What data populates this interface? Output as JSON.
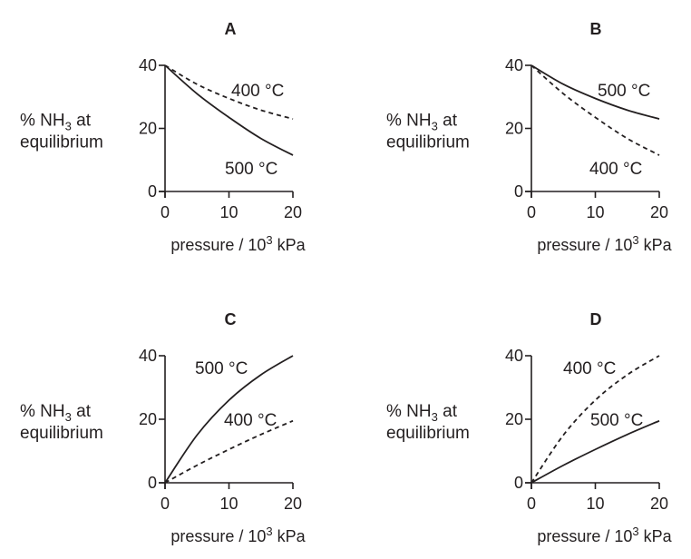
{
  "chart_data": [
    {
      "type": "line",
      "title": "A",
      "xlabel": "pressure / 10³ kPa",
      "ylabel": [
        "% NH₃ at",
        "equilibrium"
      ],
      "xlim": [
        0,
        20
      ],
      "ylim": [
        0,
        40
      ],
      "xticks": [
        "0",
        "10",
        "20"
      ],
      "yticks": [
        "0",
        "20",
        "40"
      ],
      "series": [
        {
          "name": "400 °C",
          "style": "dashed",
          "x": [
            0,
            5,
            10,
            15,
            20
          ],
          "y": [
            40,
            34,
            29.5,
            25.8,
            23
          ]
        },
        {
          "name": "500 °C",
          "style": "solid",
          "x": [
            0,
            5,
            10,
            15,
            20
          ],
          "y": [
            40,
            31,
            23.5,
            16.8,
            11.5
          ]
        }
      ]
    },
    {
      "type": "line",
      "title": "B",
      "xlabel": "pressure / 10³ kPa",
      "ylabel": [
        "% NH₃ at",
        "equilibrium"
      ],
      "xlim": [
        0,
        20
      ],
      "ylim": [
        0,
        40
      ],
      "xticks": [
        "0",
        "10",
        "20"
      ],
      "yticks": [
        "0",
        "20",
        "40"
      ],
      "series": [
        {
          "name": "500 °C",
          "style": "solid",
          "x": [
            0,
            5,
            10,
            15,
            20
          ],
          "y": [
            40,
            34,
            29.5,
            25.8,
            23
          ]
        },
        {
          "name": "400 °C",
          "style": "dashed",
          "x": [
            0,
            5,
            10,
            15,
            20
          ],
          "y": [
            40,
            31,
            23.5,
            16.8,
            11.5
          ]
        }
      ]
    },
    {
      "type": "line",
      "title": "C",
      "xlabel": "pressure / 10³ kPa",
      "ylabel": [
        "% NH₃ at",
        "equilibrium"
      ],
      "xlim": [
        0,
        20
      ],
      "ylim": [
        0,
        40
      ],
      "xticks": [
        "0",
        "10",
        "20"
      ],
      "yticks": [
        "0",
        "20",
        "40"
      ],
      "series": [
        {
          "name": "500 °C",
          "style": "solid",
          "x": [
            0,
            5,
            10,
            15,
            20
          ],
          "y": [
            0,
            15,
            26,
            34,
            40
          ]
        },
        {
          "name": "400 °C",
          "style": "dashed",
          "x": [
            0,
            5,
            10,
            15,
            20
          ],
          "y": [
            0,
            5.5,
            10.5,
            15.2,
            19.5
          ]
        }
      ]
    },
    {
      "type": "line",
      "title": "D",
      "xlabel": "pressure / 10³ kPa",
      "ylabel": [
        "% NH₃ at",
        "equilibrium"
      ],
      "xlim": [
        0,
        20
      ],
      "ylim": [
        0,
        40
      ],
      "xticks": [
        "0",
        "10",
        "20"
      ],
      "yticks": [
        "0",
        "20",
        "40"
      ],
      "series": [
        {
          "name": "400 °C",
          "style": "dashed",
          "x": [
            0,
            5,
            10,
            15,
            20
          ],
          "y": [
            0,
            15,
            26,
            34,
            40
          ]
        },
        {
          "name": "500 °C",
          "style": "solid",
          "x": [
            0,
            5,
            10,
            15,
            20
          ],
          "y": [
            0,
            5.5,
            10.5,
            15.2,
            19.5
          ]
        }
      ]
    }
  ]
}
